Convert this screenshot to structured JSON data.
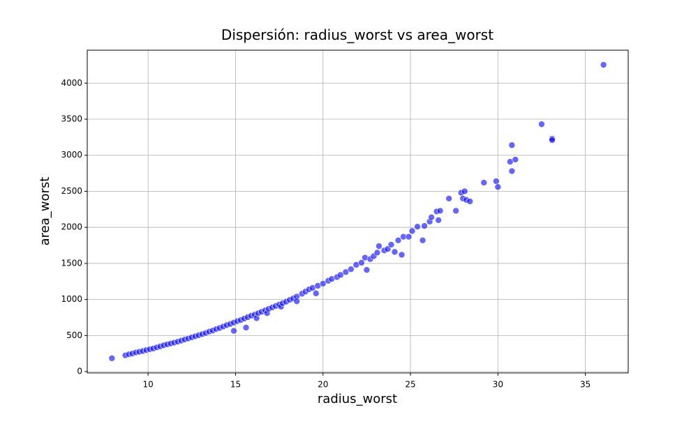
{
  "chart_data": {
    "type": "scatter",
    "title": "Dispersión: radius_worst vs area_worst",
    "x_label": "radius_worst",
    "y_label": "area_worst",
    "color": "#0000ff",
    "grid": true,
    "xlim": [
      6.52,
      37.45
    ],
    "ylim": [
      -18.2,
      4457
    ],
    "xticks": [
      10,
      15,
      20,
      25,
      30,
      35
    ],
    "yticks": [
      0,
      500,
      1000,
      1500,
      2000,
      2500,
      3000,
      3500,
      4000
    ],
    "x": [
      7.93,
      8.7,
      8.9,
      9.1,
      9.3,
      9.5,
      9.7,
      9.9,
      10.1,
      10.3,
      10.5,
      10.7,
      10.9,
      11.1,
      11.3,
      11.5,
      11.7,
      11.9,
      12.1,
      12.3,
      12.5,
      12.7,
      12.9,
      13.1,
      13.3,
      13.5,
      13.7,
      13.9,
      14.1,
      14.3,
      14.5,
      14.7,
      14.9,
      14.9,
      15.1,
      15.3,
      15.5,
      15.6,
      15.7,
      15.9,
      16.1,
      16.2,
      16.3,
      16.5,
      16.7,
      16.8,
      16.9,
      17.1,
      17.3,
      17.5,
      17.6,
      17.7,
      17.9,
      18.1,
      18.3,
      18.5,
      18.5,
      18.8,
      19.0,
      19.2,
      19.4,
      19.6,
      19.7,
      20.0,
      20.3,
      20.5,
      20.8,
      21.0,
      21.3,
      21.6,
      21.9,
      22.2,
      22.4,
      22.5,
      22.7,
      22.9,
      23.1,
      23.2,
      23.5,
      23.7,
      23.9,
      24.1,
      24.3,
      24.5,
      24.6,
      24.9,
      25.1,
      25.4,
      25.7,
      25.8,
      26.1,
      26.2,
      26.5,
      26.6,
      26.7,
      27.2,
      27.6,
      27.9,
      28.0,
      28.1,
      28.2,
      28.4,
      29.2,
      29.9,
      30.0,
      30.7,
      30.8,
      30.8,
      31.0,
      32.5,
      33.1,
      33.1,
      36.04
    ],
    "values": [
      185,
      225,
      240,
      250,
      265,
      275,
      285,
      298,
      310,
      320,
      335,
      350,
      365,
      378,
      390,
      402,
      415,
      430,
      445,
      460,
      475,
      490,
      505,
      520,
      535,
      555,
      570,
      590,
      605,
      625,
      645,
      660,
      680,
      565,
      700,
      715,
      735,
      610,
      755,
      775,
      790,
      740,
      810,
      830,
      850,
      810,
      870,
      890,
      910,
      930,
      900,
      950,
      970,
      995,
      1015,
      1040,
      975,
      1080,
      1110,
      1140,
      1160,
      1085,
      1190,
      1220,
      1260,
      1285,
      1310,
      1340,
      1380,
      1420,
      1480,
      1510,
      1580,
      1410,
      1560,
      1600,
      1650,
      1740,
      1680,
      1700,
      1760,
      1660,
      1820,
      1620,
      1870,
      1870,
      1950,
      2010,
      1820,
      2020,
      2080,
      2140,
      2220,
      2100,
      2230,
      2400,
      2230,
      2480,
      2400,
      2500,
      2380,
      2360,
      2620,
      2640,
      2560,
      2910,
      3140,
      2780,
      2940,
      3430,
      3230,
      3210,
      4254
    ]
  }
}
